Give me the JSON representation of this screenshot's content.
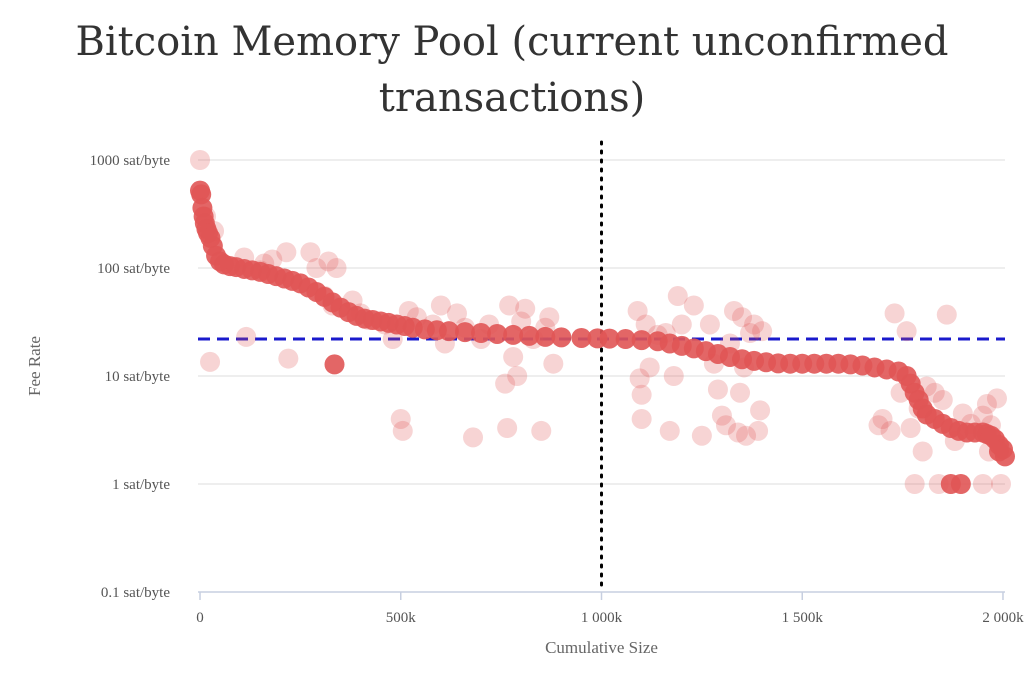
{
  "chart_data": {
    "type": "scatter",
    "title_line1": "Bitcoin Memory Pool (current unconfirmed",
    "title_line2": "transactions)",
    "xlabel": "Cumulative Size",
    "ylabel": "Fee Rate",
    "y_scale": "log",
    "xlim": [
      -5000,
      2005000
    ],
    "ylim": [
      0.1,
      1000
    ],
    "x_ticks": [
      {
        "value": 0,
        "label": "0"
      },
      {
        "value": 500000,
        "label": "500k"
      },
      {
        "value": 1000000,
        "label": "1 000k"
      },
      {
        "value": 1500000,
        "label": "1 500k"
      },
      {
        "value": 2000000,
        "label": "2 000k"
      }
    ],
    "y_ticks": [
      {
        "value": 1000,
        "label": "1000 sat/byte"
      },
      {
        "value": 100,
        "label": "100 sat/byte"
      },
      {
        "value": 10,
        "label": "10 sat/byte"
      },
      {
        "value": 1,
        "label": "1 sat/byte"
      },
      {
        "value": 0.1,
        "label": "0.1 sat/byte"
      }
    ],
    "grid": true,
    "reference_lines": [
      {
        "orientation": "horizontal",
        "value": 22,
        "style": "dashed",
        "color": "#1a1acc"
      },
      {
        "orientation": "vertical",
        "value": 1000000,
        "style": "dotted",
        "color": "#000000"
      }
    ],
    "series": [
      {
        "color": "#e05555",
        "opacity": "dense",
        "points": [
          [
            0,
            520
          ],
          [
            3000,
            480
          ],
          [
            6000,
            360
          ],
          [
            9000,
            300
          ],
          [
            12000,
            260
          ],
          [
            16000,
            230
          ],
          [
            20000,
            210
          ],
          [
            26000,
            190
          ],
          [
            32000,
            160
          ],
          [
            40000,
            130
          ],
          [
            50000,
            115
          ],
          [
            60000,
            108
          ],
          [
            75000,
            104
          ],
          [
            90000,
            102
          ],
          [
            110000,
            98
          ],
          [
            130000,
            95
          ],
          [
            150000,
            92
          ],
          [
            170000,
            88
          ],
          [
            190000,
            84
          ],
          [
            210000,
            80
          ],
          [
            230000,
            76
          ],
          [
            250000,
            72
          ],
          [
            270000,
            66
          ],
          [
            290000,
            60
          ],
          [
            310000,
            54
          ],
          [
            330000,
            48
          ],
          [
            350000,
            43
          ],
          [
            370000,
            39
          ],
          [
            390000,
            36
          ],
          [
            410000,
            34
          ],
          [
            430000,
            33
          ],
          [
            450000,
            32
          ],
          [
            470000,
            31
          ],
          [
            490000,
            30
          ],
          [
            510000,
            29
          ],
          [
            530000,
            28
          ],
          [
            560000,
            27
          ],
          [
            590000,
            26.5
          ],
          [
            620000,
            26
          ],
          [
            660000,
            25.5
          ],
          [
            700000,
            25
          ],
          [
            740000,
            24.5
          ],
          [
            780000,
            24
          ],
          [
            820000,
            23.5
          ],
          [
            860000,
            23
          ],
          [
            900000,
            22.8
          ],
          [
            950000,
            22.5
          ],
          [
            990000,
            22.3
          ],
          [
            1020000,
            22.2
          ],
          [
            1060000,
            22
          ],
          [
            1100000,
            21.5
          ],
          [
            1140000,
            21
          ],
          [
            1170000,
            20
          ],
          [
            1200000,
            19
          ],
          [
            1230000,
            18
          ],
          [
            1260000,
            17
          ],
          [
            1290000,
            16
          ],
          [
            1320000,
            15
          ],
          [
            1350000,
            14.3
          ],
          [
            1380000,
            13.8
          ],
          [
            1410000,
            13.4
          ],
          [
            1440000,
            13.1
          ],
          [
            1470000,
            13
          ],
          [
            1500000,
            13
          ],
          [
            1530000,
            13
          ],
          [
            1560000,
            13
          ],
          [
            1590000,
            13
          ],
          [
            1620000,
            12.8
          ],
          [
            1650000,
            12.5
          ],
          [
            1680000,
            12
          ],
          [
            1710000,
            11.5
          ],
          [
            1740000,
            11
          ],
          [
            1760000,
            10
          ],
          [
            1770000,
            8.5
          ],
          [
            1780000,
            7
          ],
          [
            1790000,
            6
          ],
          [
            1800000,
            5
          ],
          [
            1810000,
            4.4
          ],
          [
            1830000,
            4
          ],
          [
            1850000,
            3.6
          ],
          [
            1870000,
            3.3
          ],
          [
            1890000,
            3.1
          ],
          [
            1910000,
            3
          ],
          [
            1930000,
            3
          ],
          [
            1950000,
            3
          ],
          [
            1960000,
            2.9
          ],
          [
            1970000,
            2.8
          ],
          [
            1980000,
            2.6
          ],
          [
            1990000,
            2.3
          ],
          [
            2000000,
            2.1
          ],
          [
            335000,
            12.8
          ],
          [
            1895000,
            1
          ],
          [
            1870000,
            1
          ],
          [
            2005000,
            1.8
          ],
          [
            1990000,
            2
          ]
        ]
      },
      {
        "color": "#e05555",
        "opacity": "faint",
        "points": [
          [
            0,
            1000
          ],
          [
            15000,
            300
          ],
          [
            35000,
            220
          ],
          [
            25000,
            13.5
          ],
          [
            110000,
            125
          ],
          [
            115000,
            23
          ],
          [
            150000,
            95
          ],
          [
            160000,
            110
          ],
          [
            180000,
            120
          ],
          [
            215000,
            140
          ],
          [
            220000,
            14.5
          ],
          [
            275000,
            140
          ],
          [
            290000,
            100
          ],
          [
            310000,
            55
          ],
          [
            320000,
            115
          ],
          [
            330000,
            45
          ],
          [
            340000,
            100
          ],
          [
            380000,
            50
          ],
          [
            400000,
            38
          ],
          [
            420000,
            33
          ],
          [
            460000,
            30
          ],
          [
            480000,
            22
          ],
          [
            500000,
            4
          ],
          [
            505000,
            3.1
          ],
          [
            520000,
            40
          ],
          [
            540000,
            35
          ],
          [
            580000,
            30
          ],
          [
            600000,
            45
          ],
          [
            610000,
            20
          ],
          [
            640000,
            38
          ],
          [
            660000,
            28
          ],
          [
            680000,
            2.7
          ],
          [
            700000,
            22
          ],
          [
            720000,
            30
          ],
          [
            760000,
            8.5
          ],
          [
            765000,
            3.3
          ],
          [
            770000,
            45
          ],
          [
            780000,
            15
          ],
          [
            790000,
            10
          ],
          [
            800000,
            32
          ],
          [
            810000,
            42
          ],
          [
            830000,
            22
          ],
          [
            850000,
            3.1
          ],
          [
            860000,
            28
          ],
          [
            870000,
            35
          ],
          [
            880000,
            13
          ],
          [
            1090000,
            40
          ],
          [
            1095000,
            9.5
          ],
          [
            1100000,
            6.7
          ],
          [
            1100000,
            4
          ],
          [
            1110000,
            30
          ],
          [
            1120000,
            12
          ],
          [
            1140000,
            24
          ],
          [
            1160000,
            25
          ],
          [
            1170000,
            3.1
          ],
          [
            1180000,
            10
          ],
          [
            1190000,
            55
          ],
          [
            1200000,
            30
          ],
          [
            1230000,
            45
          ],
          [
            1250000,
            2.8
          ],
          [
            1270000,
            30
          ],
          [
            1280000,
            13
          ],
          [
            1290000,
            7.5
          ],
          [
            1300000,
            4.3
          ],
          [
            1310000,
            3.5
          ],
          [
            1320000,
            20
          ],
          [
            1330000,
            40
          ],
          [
            1340000,
            3
          ],
          [
            1345000,
            7
          ],
          [
            1350000,
            35
          ],
          [
            1355000,
            12
          ],
          [
            1360000,
            2.8
          ],
          [
            1370000,
            25
          ],
          [
            1380000,
            30
          ],
          [
            1390000,
            3.1
          ],
          [
            1395000,
            4.8
          ],
          [
            1400000,
            26
          ],
          [
            1690000,
            3.5
          ],
          [
            1700000,
            4
          ],
          [
            1720000,
            3.1
          ],
          [
            1730000,
            38
          ],
          [
            1745000,
            7
          ],
          [
            1760000,
            26
          ],
          [
            1770000,
            3.3
          ],
          [
            1790000,
            5
          ],
          [
            1800000,
            2
          ],
          [
            1810000,
            8
          ],
          [
            1830000,
            7
          ],
          [
            1850000,
            6
          ],
          [
            1860000,
            37
          ],
          [
            1880000,
            2.5
          ],
          [
            1900000,
            4.5
          ],
          [
            1920000,
            3.6
          ],
          [
            1950000,
            4.3
          ],
          [
            1960000,
            5.5
          ],
          [
            1970000,
            3.5
          ],
          [
            1985000,
            6.2
          ],
          [
            1995000,
            1
          ],
          [
            1780000,
            1
          ],
          [
            1840000,
            1
          ],
          [
            1950000,
            1
          ],
          [
            1965000,
            2
          ]
        ]
      }
    ]
  },
  "colors": {
    "point": "#e05555",
    "grid": "#dddddd",
    "median_line": "#1a1acc",
    "reference_vline": "#000000"
  }
}
